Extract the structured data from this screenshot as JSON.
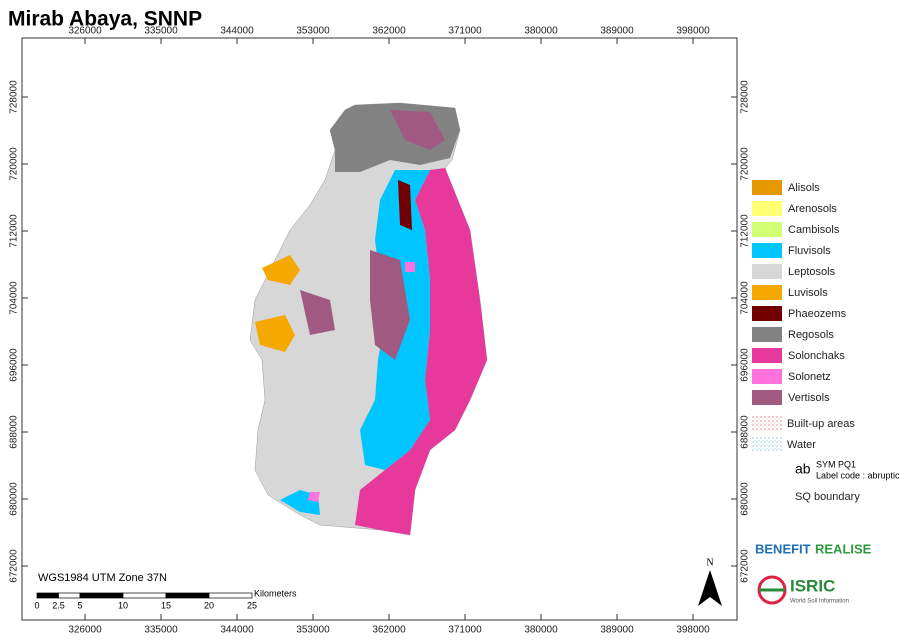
{
  "title": "Mirab Abaya, SNNP",
  "map": {
    "xticks": [
      326000,
      335000,
      344000,
      353000,
      362000,
      371000,
      380000,
      389000,
      398000
    ],
    "yticks": [
      728000,
      720000,
      712000,
      704000,
      696000,
      688000,
      680000,
      672000
    ],
    "projection": "WGS1984 UTM Zone 37N",
    "north": "N",
    "scale": {
      "ticks": [
        0,
        2.5,
        5,
        10,
        15,
        20,
        25
      ],
      "unit": "Kilometers"
    }
  },
  "legend": {
    "items": [
      {
        "name": "Alisols",
        "color": "#e69800"
      },
      {
        "name": "Arenosols",
        "color": "#ffff73"
      },
      {
        "name": "Cambisols",
        "color": "#d1ff73"
      },
      {
        "name": "Fluvisols",
        "color": "#00c5ff"
      },
      {
        "name": "Leptosols",
        "color": "#d7d7d7"
      },
      {
        "name": "Luvisols",
        "color": "#f5a800"
      },
      {
        "name": "Phaeozems",
        "color": "#730000"
      },
      {
        "name": "Regosols",
        "color": "#828282"
      },
      {
        "name": "Solonchaks",
        "color": "#e6399b"
      },
      {
        "name": "Solonetz",
        "color": "#ff73df"
      },
      {
        "name": "Vertisols",
        "color": "#a05a82"
      }
    ],
    "built_up": "Built-up areas",
    "water": "Water",
    "label_symbol": "ab",
    "label_title": "SYM PQ1",
    "label_code": "Label code : abruptic",
    "boundary": "SQ boundary"
  },
  "logos": {
    "benefit": "BENEFIT",
    "realise": "REALISE",
    "isric": "ISRIC",
    "isric_sub": "World Soil Information"
  }
}
